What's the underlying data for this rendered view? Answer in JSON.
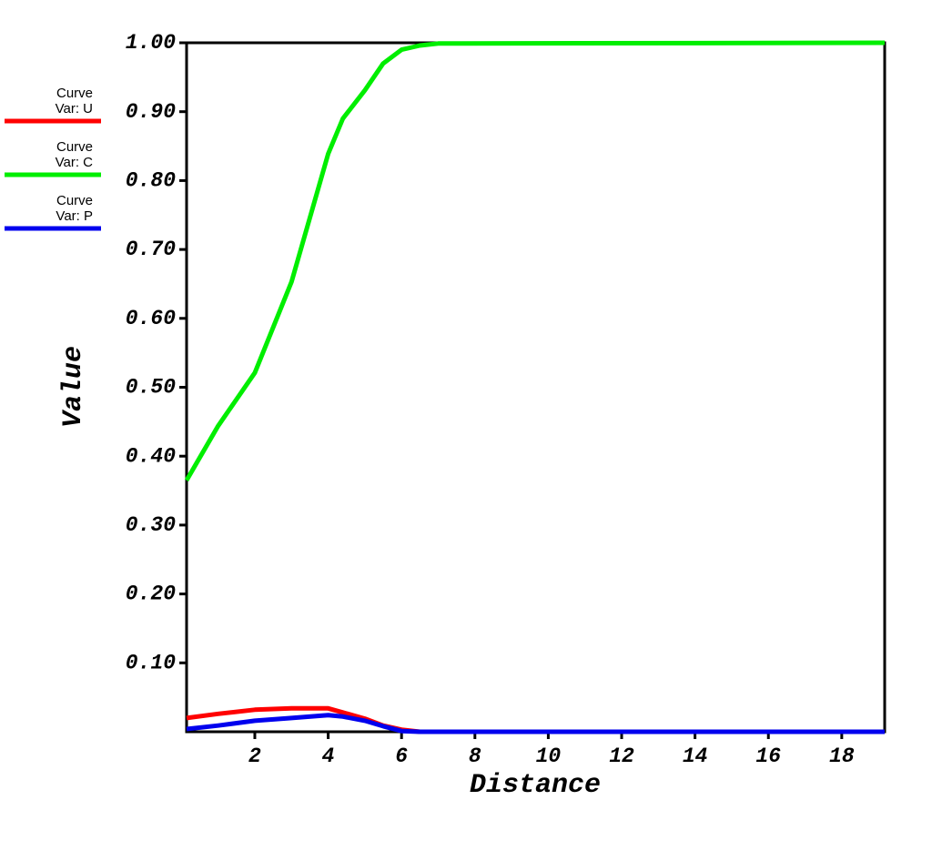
{
  "chart_data": {
    "type": "line",
    "x_label": "Distance",
    "y_label": "Value",
    "x": [
      0.14,
      1,
      2,
      3,
      4,
      4.4,
      5,
      5.5,
      6,
      6.5,
      7,
      19.17
    ],
    "series": [
      {
        "name": "Var: U",
        "label": "Curve",
        "color": "#ff0000",
        "values": [
          0.02,
          0.026,
          0.032,
          0.034,
          0.034,
          0.028,
          0.019,
          0.009,
          0.003,
          0,
          0,
          0
        ]
      },
      {
        "name": "Var: C",
        "label": "Curve",
        "color": "#00ee00",
        "values": [
          0.365,
          0.444,
          0.521,
          0.653,
          0.839,
          0.89,
          0.931,
          0.97,
          0.99,
          0.996,
          0.999,
          1.0
        ]
      },
      {
        "name": "Var: P",
        "label": "Curve",
        "color": "#0000ee",
        "values": [
          0.004,
          0.009,
          0.016,
          0.02,
          0.024,
          0.022,
          0.016,
          0.008,
          0.001,
          0,
          0,
          0
        ]
      }
    ],
    "xlim": [
      0.14,
      19.17
    ],
    "ylim": [
      0,
      1.0
    ],
    "xticks": [
      2,
      4,
      6,
      8,
      10,
      12,
      14,
      16,
      18
    ],
    "yticks": [
      {
        "value": 0.1,
        "label": "0.10"
      },
      {
        "value": 0.2,
        "label": "0.20"
      },
      {
        "value": 0.3,
        "label": "0.30"
      },
      {
        "value": 0.4,
        "label": "0.40"
      },
      {
        "value": 0.5,
        "label": "0.50"
      },
      {
        "value": 0.6,
        "label": "0.60"
      },
      {
        "value": 0.7,
        "label": "0.70"
      },
      {
        "value": 0.8,
        "label": "0.80"
      },
      {
        "value": 0.9,
        "label": "0.90"
      },
      {
        "value": 1.0,
        "label": "1.00"
      }
    ],
    "legend": "left",
    "grid": false
  }
}
